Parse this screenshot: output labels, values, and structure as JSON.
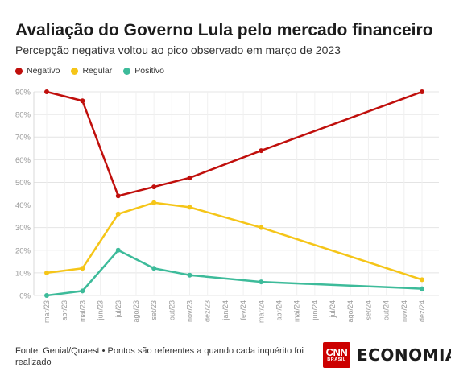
{
  "header": {
    "title": "Avaliação do Governo Lula pelo mercado financeiro",
    "subtitle": "Percepção negativa voltou ao pico observado em março de 2023"
  },
  "legend": [
    {
      "label": "Negativo",
      "color": "#c00f0c"
    },
    {
      "label": "Regular",
      "color": "#f5c518"
    },
    {
      "label": "Positivo",
      "color": "#3dbb9a"
    }
  ],
  "footer": {
    "note": "Fonte: Genial/Quaest • Pontos são referentes a quando cada inquérito foi realizado",
    "brand_logo_text": "CNN",
    "brand_logo_sub": "BRASIL",
    "brand_name": "ECONOMIA"
  },
  "chart_data": {
    "type": "line",
    "x_categories": [
      "mar/23",
      "abr/23",
      "mai/23",
      "jun/23",
      "jul/23",
      "ago/23",
      "set/23",
      "out/23",
      "nov/23",
      "dez/23",
      "jan/24",
      "fev/24",
      "mar/24",
      "abr/24",
      "mai/24",
      "jun/24",
      "jul/24",
      "ago/24",
      "set/24",
      "out/24",
      "nov/24",
      "dez/24"
    ],
    "y_ticks": [
      "0%",
      "10%",
      "20%",
      "30%",
      "40%",
      "50%",
      "60%",
      "70%",
      "80%",
      "90%"
    ],
    "ylim": [
      0,
      90
    ],
    "grid": true,
    "series": [
      {
        "name": "Negativo",
        "color": "#c00f0c",
        "points": [
          [
            "mar/23",
            90
          ],
          [
            "mai/23",
            86
          ],
          [
            "jul/23",
            44
          ],
          [
            "set/23",
            48
          ],
          [
            "nov/23",
            52
          ],
          [
            "mar/24",
            64
          ],
          [
            "dez/24",
            90
          ]
        ]
      },
      {
        "name": "Regular",
        "color": "#f5c518",
        "points": [
          [
            "mar/23",
            10
          ],
          [
            "mai/23",
            12
          ],
          [
            "jul/23",
            36
          ],
          [
            "set/23",
            41
          ],
          [
            "nov/23",
            39
          ],
          [
            "mar/24",
            30
          ],
          [
            "dez/24",
            7
          ]
        ]
      },
      {
        "name": "Positivo",
        "color": "#3dbb9a",
        "points": [
          [
            "mar/23",
            0
          ],
          [
            "mai/23",
            2
          ],
          [
            "jul/23",
            20
          ],
          [
            "set/23",
            12
          ],
          [
            "nov/23",
            9
          ],
          [
            "mar/24",
            6
          ],
          [
            "dez/24",
            3
          ]
        ]
      }
    ]
  }
}
